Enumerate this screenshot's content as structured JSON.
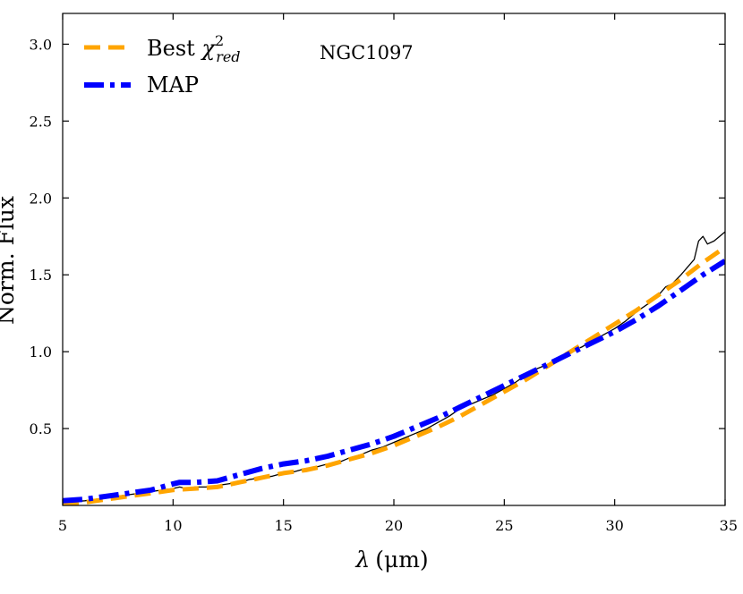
{
  "chart_data": {
    "type": "line",
    "annotation": "NGC1097",
    "xlabel_symbol": "λ",
    "xlabel_unit": "(μm)",
    "ylabel": "Norm. Flux",
    "xlim": [
      5,
      35
    ],
    "ylim": [
      0,
      3.2
    ],
    "x_ticks": [
      5,
      10,
      15,
      20,
      25,
      30,
      35
    ],
    "x_tick_labels": [
      "5",
      "10",
      "15",
      "20",
      "25",
      "30",
      "35"
    ],
    "y_ticks": [
      0.5,
      1.0,
      1.5,
      2.0,
      2.5,
      3.0
    ],
    "y_tick_labels": [
      "0.5",
      "1.0",
      "1.5",
      "2.0",
      "2.5",
      "3.0"
    ],
    "grid": false,
    "legend_position": "top-left",
    "series": [
      {
        "name": "observed",
        "color": "#000000",
        "style": "solid-thin",
        "legend": false,
        "x": [
          5,
          6,
          7,
          8,
          9,
          9.5,
          10,
          10.3,
          10.6,
          11,
          11.5,
          12,
          12.5,
          13,
          13.5,
          14,
          14.5,
          15,
          15.5,
          16,
          16.5,
          17,
          17.5,
          18,
          18.5,
          19,
          19.5,
          20,
          20.5,
          21,
          21.5,
          22,
          22.5,
          23,
          23.5,
          24,
          24.5,
          25,
          25.5,
          26,
          26.5,
          27,
          27.5,
          28,
          28.5,
          29,
          29.5,
          30,
          30.5,
          31,
          31.5,
          32,
          32.3,
          32.6,
          33,
          33.3,
          33.6,
          33.8,
          34,
          34.2,
          34.5,
          35
        ],
        "y": [
          0.02,
          0.03,
          0.05,
          0.07,
          0.09,
          0.1,
          0.11,
          0.12,
          0.11,
          0.12,
          0.12,
          0.13,
          0.14,
          0.15,
          0.17,
          0.18,
          0.19,
          0.21,
          0.22,
          0.24,
          0.25,
          0.27,
          0.28,
          0.31,
          0.33,
          0.36,
          0.38,
          0.41,
          0.44,
          0.47,
          0.5,
          0.54,
          0.58,
          0.63,
          0.66,
          0.69,
          0.72,
          0.76,
          0.8,
          0.85,
          0.89,
          0.92,
          0.96,
          1.0,
          1.03,
          1.07,
          1.11,
          1.15,
          1.2,
          1.26,
          1.31,
          1.37,
          1.42,
          1.44,
          1.5,
          1.55,
          1.6,
          1.72,
          1.75,
          1.7,
          1.72,
          1.78
        ]
      },
      {
        "name": "Best χ²_red",
        "legend_label": "Best",
        "legend_sym": "χ",
        "legend_sup": "2",
        "legend_sub": "red",
        "color": "#ffa500",
        "style": "dashed",
        "legend": true,
        "x": [
          5,
          6,
          7,
          8,
          9,
          10,
          11,
          12,
          13,
          14,
          15,
          16,
          17,
          18,
          19,
          20,
          21,
          22,
          23,
          24,
          25,
          26,
          27,
          28,
          29,
          30,
          31,
          32,
          33,
          34,
          35
        ],
        "y": [
          0.01,
          0.02,
          0.04,
          0.06,
          0.08,
          0.1,
          0.11,
          0.12,
          0.15,
          0.18,
          0.21,
          0.23,
          0.26,
          0.3,
          0.34,
          0.39,
          0.45,
          0.51,
          0.58,
          0.66,
          0.74,
          0.82,
          0.91,
          1.0,
          1.09,
          1.18,
          1.27,
          1.37,
          1.47,
          1.58,
          1.68
        ]
      },
      {
        "name": "MAP",
        "legend_label": "MAP",
        "color": "#0000ff",
        "style": "dashdot",
        "legend": true,
        "x": [
          5,
          6,
          7,
          8,
          9,
          9.5,
          10,
          10.3,
          11,
          12,
          13,
          14,
          15,
          16,
          17,
          18,
          19,
          20,
          21,
          22,
          23,
          24,
          25,
          26,
          27,
          28,
          29,
          30,
          31,
          32,
          33,
          34,
          35
        ],
        "y": [
          0.03,
          0.04,
          0.06,
          0.08,
          0.1,
          0.12,
          0.14,
          0.15,
          0.15,
          0.16,
          0.2,
          0.24,
          0.27,
          0.29,
          0.32,
          0.36,
          0.4,
          0.45,
          0.51,
          0.57,
          0.64,
          0.71,
          0.78,
          0.85,
          0.92,
          0.99,
          1.06,
          1.13,
          1.21,
          1.3,
          1.4,
          1.5,
          1.59
        ]
      }
    ]
  }
}
